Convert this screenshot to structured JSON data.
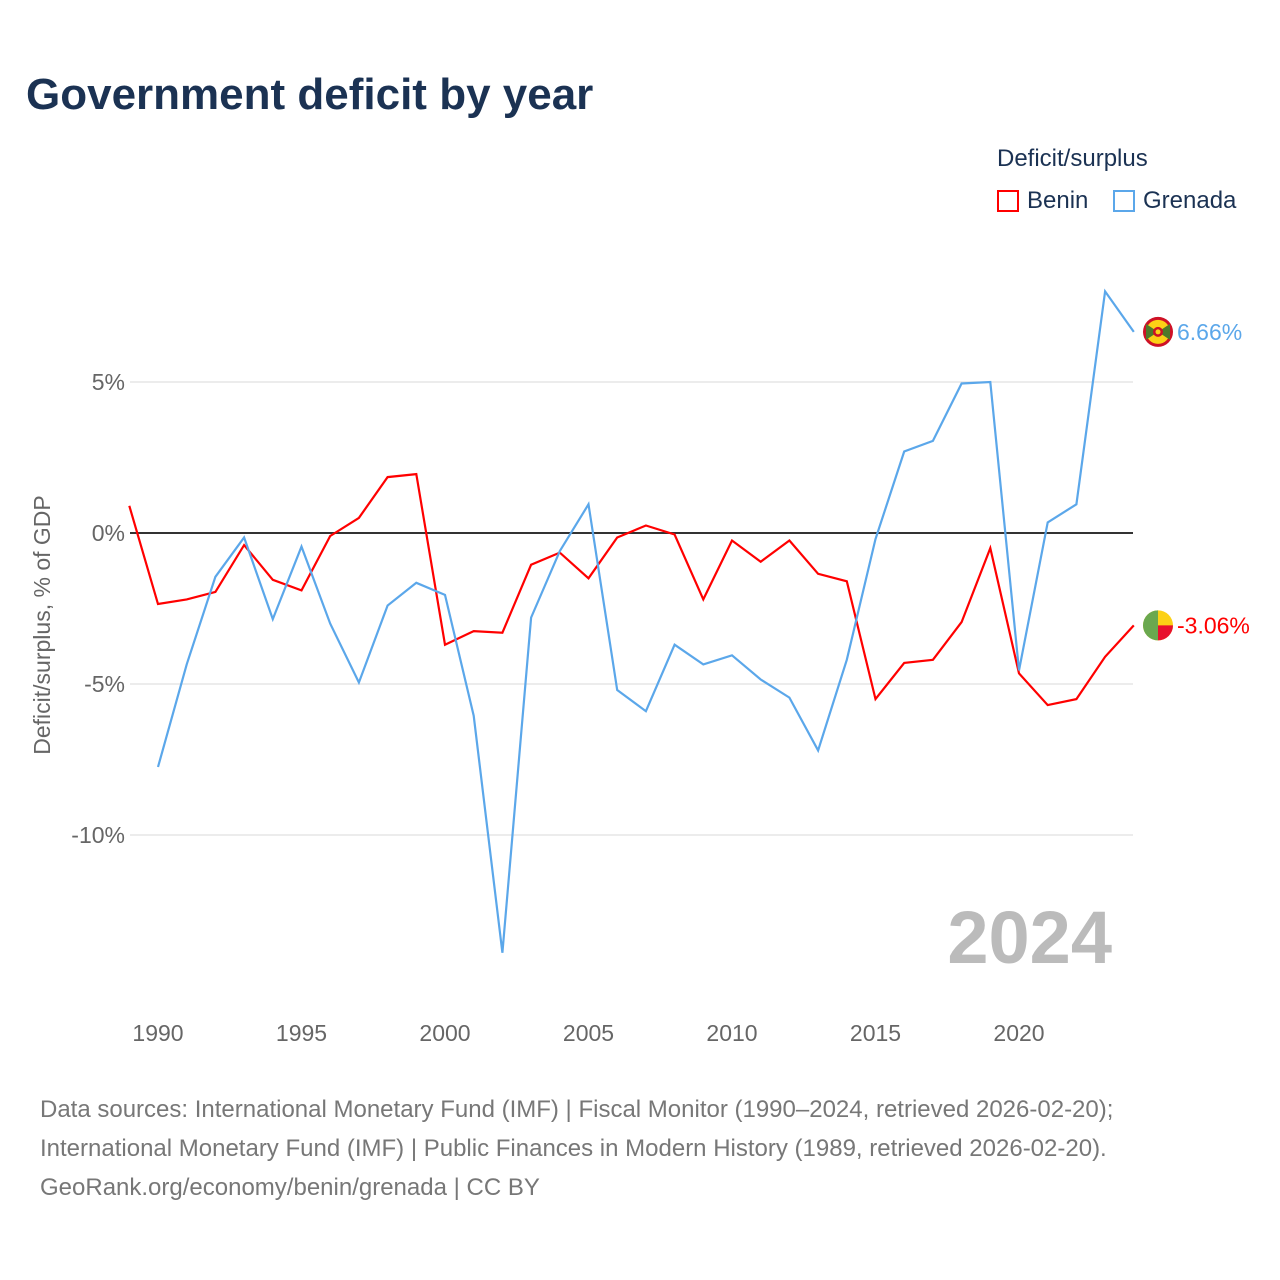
{
  "title": "Government deficit by year",
  "legend": {
    "title": "Deficit/surplus",
    "items": [
      {
        "name": "Benin",
        "color": "#ff0000"
      },
      {
        "name": "Grenada",
        "color": "#5ba7ea"
      }
    ]
  },
  "watermark_year": "2024",
  "sources": [
    "Data sources: International Monetary Fund (IMF) | Fiscal Monitor (1990–2024, retrieved 2026-02-20);",
    "International Monetary Fund (IMF) | Public Finances in Modern History (1989, retrieved 2026-02-20).",
    "GeoRank.org/economy/benin/grenada | CC BY"
  ],
  "chart_data": {
    "type": "line",
    "title": "Government deficit by year",
    "ylabel": "Deficit/surplus, % of GDP",
    "xlabel": "",
    "xlim": [
      1989,
      2024
    ],
    "ylim": [
      -15,
      9
    ],
    "xticks": [
      1990,
      1995,
      2000,
      2005,
      2010,
      2015,
      2020
    ],
    "yticks": [
      {
        "v": 5,
        "label": "5%"
      },
      {
        "v": 0,
        "label": "0%"
      },
      {
        "v": -5,
        "label": "-5%"
      },
      {
        "v": -10,
        "label": "-10%"
      }
    ],
    "series": [
      {
        "name": "Benin",
        "color": "#ff0000",
        "end_label": "-3.06%",
        "start": 1989,
        "values": [
          0.9,
          -2.35,
          -2.2,
          -1.95,
          -0.4,
          -1.55,
          -1.9,
          -0.1,
          0.5,
          1.85,
          1.95,
          -3.7,
          -3.25,
          -3.3,
          -1.05,
          -0.65,
          -1.5,
          -0.15,
          0.25,
          -0.05,
          -2.2,
          -0.25,
          -0.95,
          -0.25,
          -1.35,
          -1.6,
          -5.5,
          -4.3,
          -4.2,
          -2.95,
          -0.5,
          -4.65,
          -5.7,
          -5.5,
          -4.1,
          -3.06
        ]
      },
      {
        "name": "Grenada",
        "color": "#5ba7ea",
        "end_label": "6.66%",
        "start": 1990,
        "values": [
          -7.75,
          -4.35,
          -1.45,
          -0.15,
          -2.85,
          -0.45,
          -3.0,
          -4.95,
          -2.4,
          -1.65,
          -2.05,
          -6.05,
          -13.9,
          -2.8,
          -0.6,
          0.95,
          -5.2,
          -5.9,
          -3.7,
          -4.35,
          -4.05,
          -4.85,
          -5.45,
          -7.2,
          -4.2,
          -0.2,
          2.7,
          3.05,
          4.95,
          5.0,
          -4.55,
          0.35,
          0.95,
          8.0,
          6.66
        ]
      }
    ]
  }
}
